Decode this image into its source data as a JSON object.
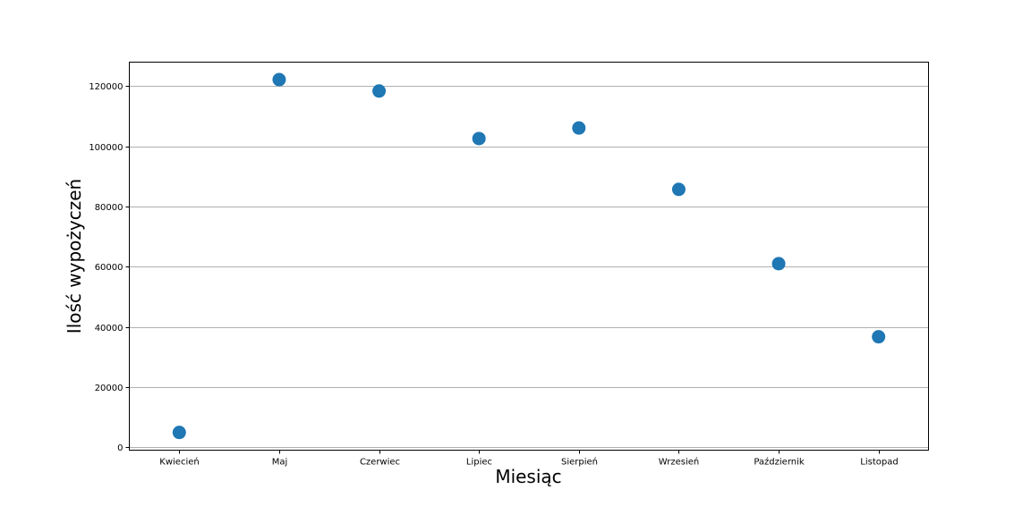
{
  "chart_data": {
    "type": "scatter",
    "title": "",
    "xlabel": "Miesiąc",
    "ylabel": "Ilość wypożyczeń",
    "categories": [
      "Kwiecień",
      "Maj",
      "Czerwiec",
      "Lipiec",
      "Sierpień",
      "Wrzesień",
      "Październik",
      "Listopad"
    ],
    "series": [
      {
        "values": [
          4900,
          122200,
          118400,
          102600,
          106100,
          85700,
          61000,
          36700
        ]
      }
    ],
    "ylim": [
      -1000,
      128000
    ],
    "yticks": [
      0,
      20000,
      40000,
      60000,
      80000,
      100000,
      120000
    ],
    "grid": "horizontal",
    "legend": "none",
    "colors": {
      "marker": "#1f77b4",
      "grid": "#b0b0b0",
      "axis": "#000000"
    }
  }
}
